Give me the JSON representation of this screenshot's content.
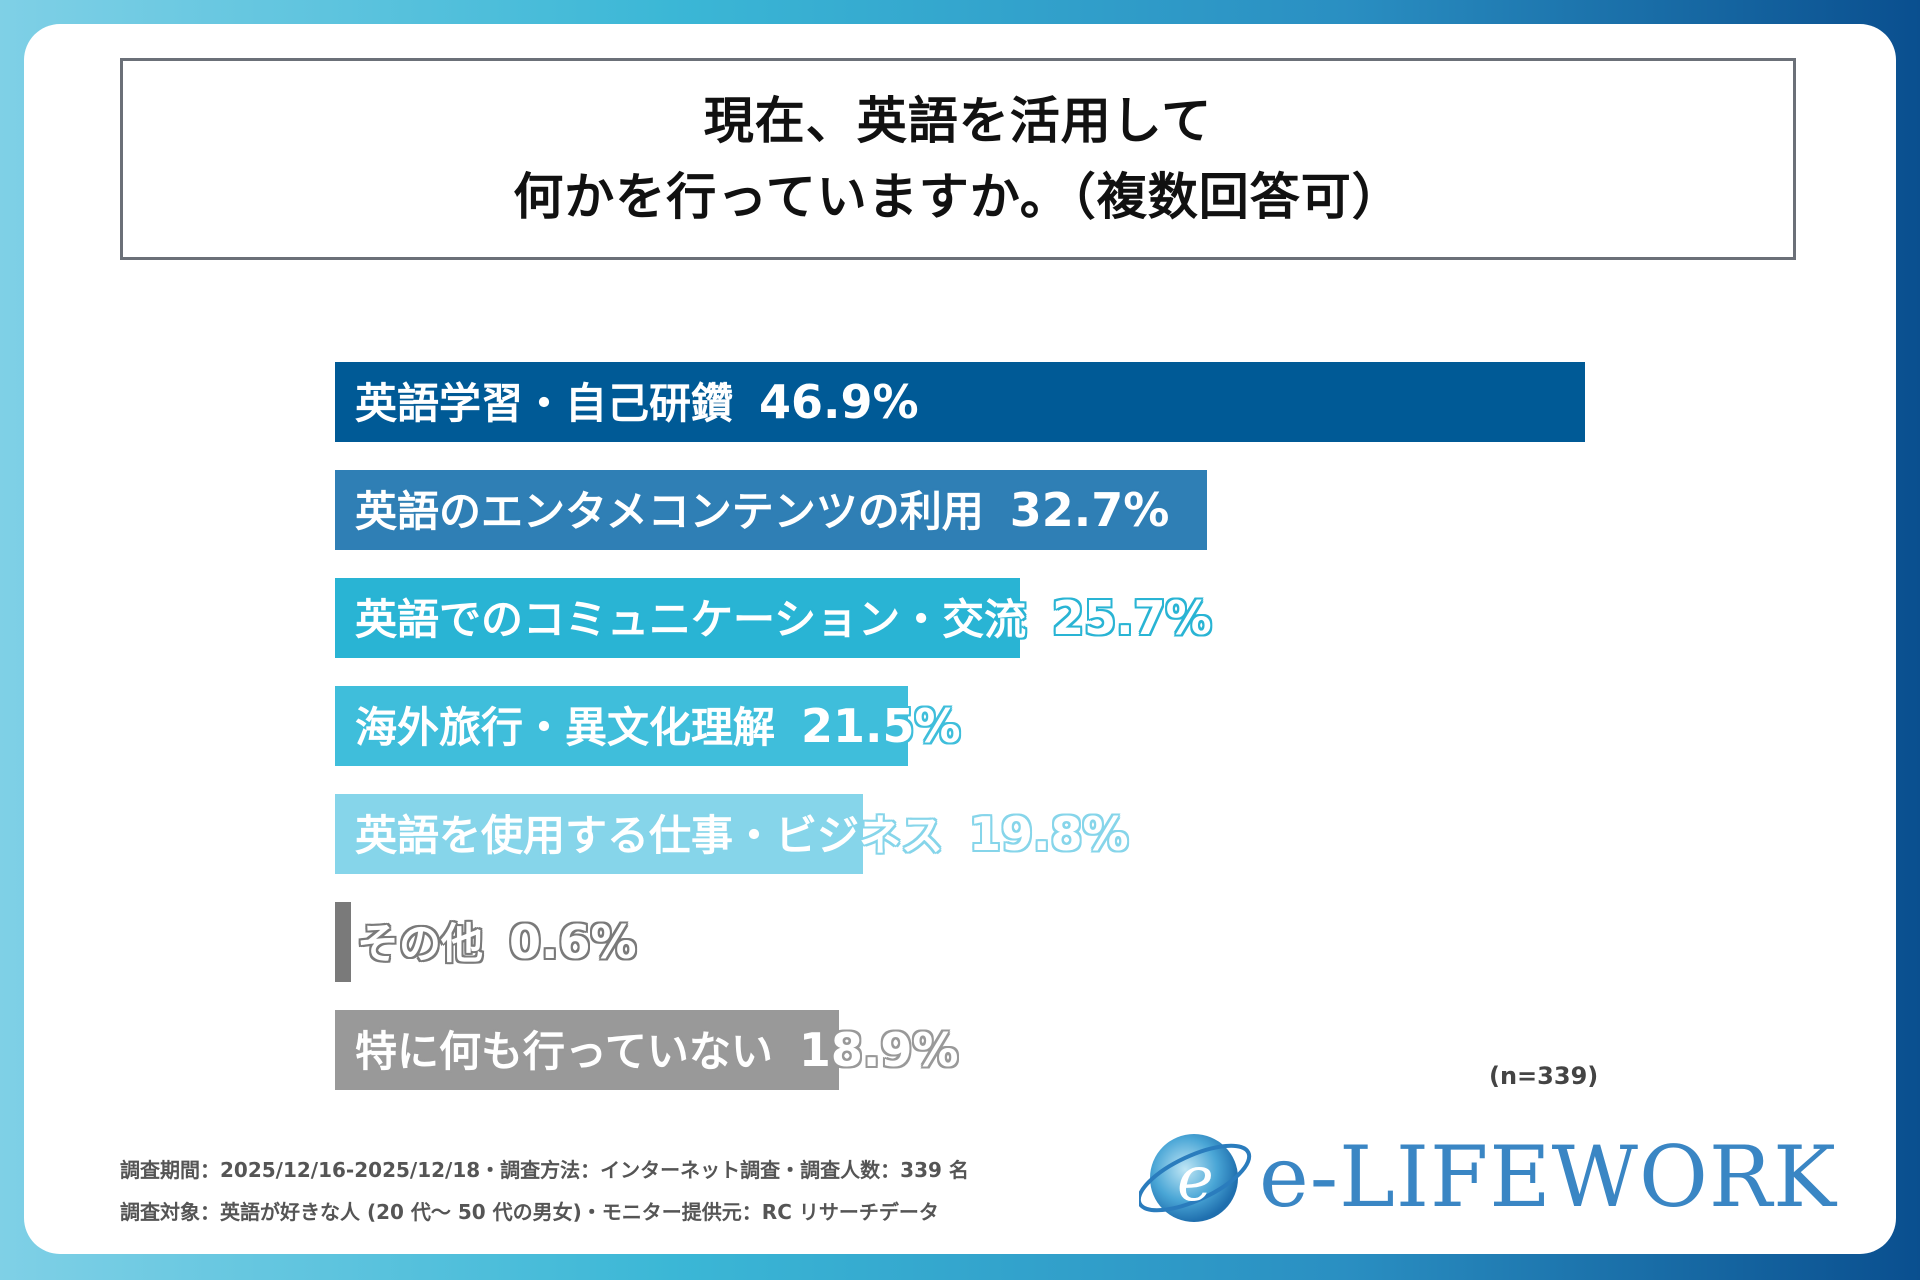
{
  "title": {
    "line1": "現在、英語を活用して",
    "line2": "何かを行っていますか。（複数回答可）"
  },
  "chart_data": {
    "type": "bar",
    "orientation": "horizontal",
    "categories": [
      "英語学習・自己研鑽",
      "英語のエンタメコンテンツの利用",
      "英語でのコミュニケーション・交流",
      "海外旅行・異文化理解",
      "英語を使用する仕事・ビジネス",
      "その他",
      "特に何も行っていない"
    ],
    "values": [
      46.9,
      32.7,
      25.7,
      21.5,
      19.8,
      0.6,
      18.9
    ],
    "value_labels": [
      "46.9%",
      "32.7%",
      "25.7%",
      "21.5%",
      "19.8%",
      "0.6%",
      "18.9%"
    ],
    "bar_colors": [
      "#005a96",
      "#2f7fb5",
      "#29b4d4",
      "#3fbedb",
      "#86d5ea",
      "#7a7a7a",
      "#999999"
    ],
    "xlim": [
      0,
      46.9
    ],
    "grid": false,
    "sample_note": "(n=339)"
  },
  "footer": {
    "line1": "調査期間：2025/12/16-2025/12/18・調査方法：インターネット調査・調査人数：339 名",
    "line2": "調査対象：英語が好きな人 (20 代～ 50 代の男女)・モニター提供元：RC リサーチデータ"
  },
  "logo": {
    "text": "e-LIFEWORK"
  }
}
